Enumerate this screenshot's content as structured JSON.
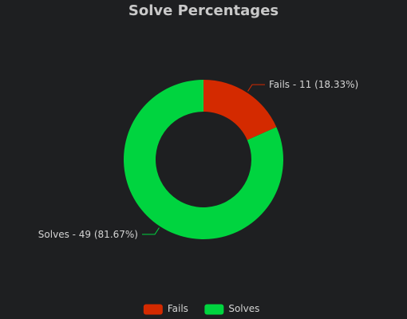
{
  "chart_data": {
    "type": "pie",
    "title": "Solve Percentages",
    "slices": [
      {
        "name": "Fails",
        "value": 11,
        "label": "Fails - 11 (18.33%)",
        "color": "#d42a00"
      },
      {
        "name": "Solves",
        "value": 49,
        "label": "Solves - 49 (81.67%)",
        "color": "#00d43f"
      }
    ],
    "legend": {
      "position": "bottom",
      "items": [
        "Fails",
        "Solves"
      ]
    },
    "background": "#1e1f21"
  }
}
